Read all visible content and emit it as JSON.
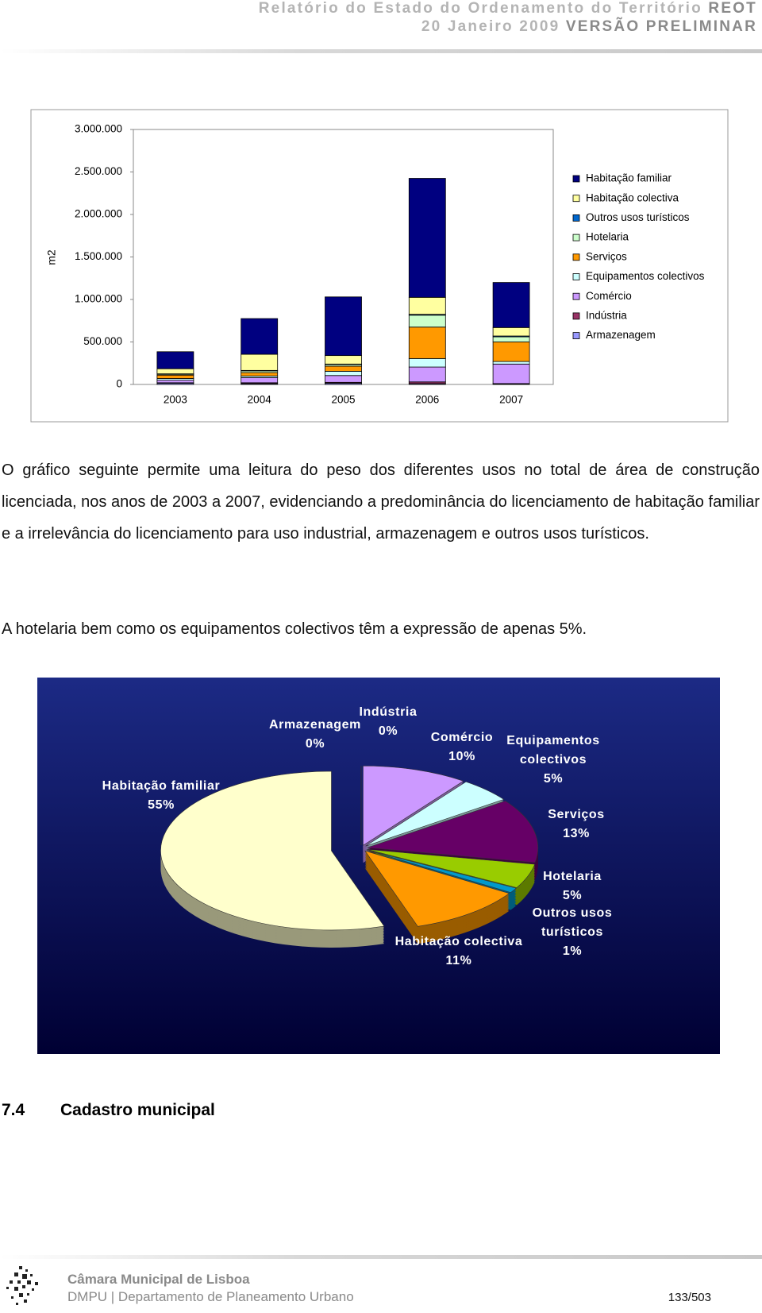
{
  "header": {
    "line1": "Relatório do Estado do Ordenamento do Território",
    "line1_emph": "REOT",
    "date": "20 Janeiro 2009",
    "version": "VERSÃO PRELIMINAR"
  },
  "chart_data": [
    {
      "type": "bar",
      "stacked": true,
      "y_label": "m2",
      "categories": [
        "2003",
        "2004",
        "2005",
        "2006",
        "2007"
      ],
      "series": [
        {
          "name": "Habitação familiar",
          "color": "#000080",
          "values": [
            200000,
            420000,
            690000,
            1400000,
            530000
          ]
        },
        {
          "name": "Habitação colectiva",
          "color": "#ffffa0",
          "values": [
            60000,
            190000,
            100000,
            200000,
            100000
          ]
        },
        {
          "name": "Outros usos turísticos",
          "color": "#0066cc",
          "values": [
            5000,
            5000,
            5000,
            10000,
            10000
          ]
        },
        {
          "name": "Hotelaria",
          "color": "#ccffcc",
          "values": [
            10000,
            20000,
            20000,
            140000,
            60000
          ]
        },
        {
          "name": "Serviços",
          "color": "#ff9900",
          "values": [
            40000,
            40000,
            60000,
            370000,
            230000
          ]
        },
        {
          "name": "Equipamentos colectivos",
          "color": "#ccffff",
          "values": [
            20000,
            20000,
            50000,
            100000,
            30000
          ]
        },
        {
          "name": "Comércio",
          "color": "#cc99ff",
          "values": [
            30000,
            60000,
            80000,
            175000,
            230000
          ]
        },
        {
          "name": "Indústria",
          "color": "#993366",
          "values": [
            5000,
            10000,
            10000,
            20000,
            5000
          ]
        },
        {
          "name": "Armazenagem",
          "color": "#9999ff",
          "values": [
            15000,
            10000,
            15000,
            10000,
            5000
          ]
        }
      ],
      "ylim": [
        0,
        3000000
      ],
      "yticks": [
        0,
        {
          "value": 500000,
          "label": "500.000"
        },
        {
          "value": 1000000,
          "label": "1.000.000"
        },
        {
          "value": 1500000,
          "label": "1.500.000"
        },
        {
          "value": 2000000,
          "label": "2.000.000"
        },
        {
          "value": 2500000,
          "label": "2.500.000"
        },
        {
          "value": 3000000,
          "label": "3.000.000"
        }
      ],
      "grid": false,
      "legend": "right"
    },
    {
      "type": "pie",
      "categories": [
        "Habitação familiar",
        "Habitação colectiva",
        "Outros usos turísticos",
        "Hotelaria",
        "Serviços",
        "Equipamentos colectivos",
        "Comércio",
        "Indústria",
        "Armazenagem"
      ],
      "values": [
        55,
        11,
        1,
        5,
        13,
        5,
        10,
        0,
        0
      ],
      "value_labels": [
        "55%",
        "11%",
        "1%",
        "5%",
        "13%",
        "5%",
        "10%",
        "0%",
        "0%"
      ],
      "colors": [
        "#ffffcc",
        "#ff9900",
        "#0099cc",
        "#99cc00",
        "#660066",
        "#ccffff",
        "#cc99ff",
        "#669933",
        "#9999ff"
      ]
    }
  ],
  "paragraphs": [
    "O gráfico seguinte permite uma leitura do peso dos diferentes usos no total de área de construção licenciada, nos anos de 2003 a 2007, evidenciando a predominância do licenciamento de habitação familiar e a irrelevância do licenciamento para uso industrial, armazenagem e outros usos turísticos.",
    "A hotelaria bem como os equipamentos colectivos têm a expressão de apenas 5%."
  ],
  "section": {
    "number": "7.4",
    "title": "Cadastro municipal"
  },
  "footer": {
    "org": "Câmara Municipal de Lisboa",
    "dept": "DMPU | Departamento de Planeamento Urbano",
    "page": "133/503"
  }
}
